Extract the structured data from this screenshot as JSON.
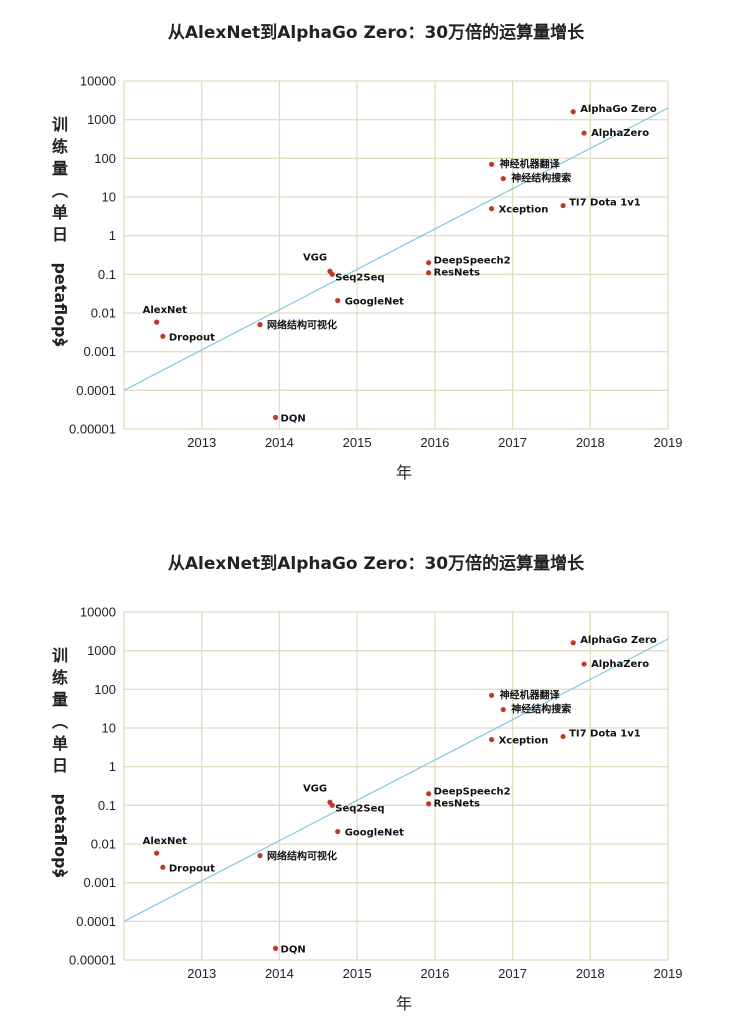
{
  "colors": {
    "grid": "#e2dcc2",
    "point": "#c0392b",
    "trend": "#7ec8e3",
    "axis": "#d8d2b6"
  },
  "chart_data": [
    {
      "type": "scatter",
      "title": "从AlexNet到AlphaGo Zero：30万倍的运算量增长",
      "xlabel": "年",
      "ylabel": "训练量（单日petaflops）",
      "xlim": [
        2012,
        2019
      ],
      "ylim": [
        1e-05,
        10000
      ],
      "yscale": "log",
      "grid": true,
      "xticks": [
        "2013",
        "2014",
        "2015",
        "2016",
        "2017",
        "2018",
        "2019"
      ],
      "yticks": [
        "10000",
        "1000",
        "100",
        "10",
        "1",
        "0.1",
        "0.01",
        "0.001",
        "0.0001",
        "0.00001"
      ],
      "points": [
        {
          "label": "AlexNet",
          "x": 2012.42,
          "y": 0.0058
        },
        {
          "label": "Dropout",
          "x": 2012.5,
          "y": 0.0025
        },
        {
          "label": "网络结构可视化",
          "x": 2013.75,
          "y": 0.005
        },
        {
          "label": "DQN",
          "x": 2013.95,
          "y": 2e-05
        },
        {
          "label": "VGG",
          "x": 2014.65,
          "y": 0.12
        },
        {
          "label": "Seq2Seq",
          "x": 2014.68,
          "y": 0.1
        },
        {
          "label": "GoogleNet",
          "x": 2014.75,
          "y": 0.021
        },
        {
          "label": "DeepSpeech2",
          "x": 2015.92,
          "y": 0.2
        },
        {
          "label": "ResNets",
          "x": 2015.92,
          "y": 0.11
        },
        {
          "label": "神经机器翻译",
          "x": 2016.73,
          "y": 70
        },
        {
          "label": "神经结构搜索",
          "x": 2016.88,
          "y": 30
        },
        {
          "label": "Xception",
          "x": 2016.73,
          "y": 5
        },
        {
          "label": "TI7 Dota 1v1",
          "x": 2017.65,
          "y": 6
        },
        {
          "label": "AlphaGo Zero",
          "x": 2017.78,
          "y": 1600
        },
        {
          "label": "AlphaZero",
          "x": 2017.92,
          "y": 450
        }
      ],
      "trend": {
        "x": [
          2012,
          2019
        ],
        "y": [
          0.0001,
          2000
        ]
      }
    },
    {
      "type": "scatter",
      "title": "从AlexNet到AlphaGo Zero：30万倍的运算量增长",
      "xlabel": "年",
      "ylabel": "训练量（单日petaflops）",
      "xlim": [
        2012,
        2019
      ],
      "ylim": [
        1e-05,
        10000
      ],
      "yscale": "log",
      "grid": true,
      "xticks": [
        "2013",
        "2014",
        "2015",
        "2016",
        "2017",
        "2018",
        "2019"
      ],
      "yticks": [
        "10000",
        "1000",
        "100",
        "10",
        "1",
        "0.1",
        "0.01",
        "0.001",
        "0.0001",
        "0.00001"
      ],
      "points": [
        {
          "label": "AlexNet",
          "x": 2012.42,
          "y": 0.0058
        },
        {
          "label": "Dropout",
          "x": 2012.5,
          "y": 0.0025
        },
        {
          "label": "网络结构可视化",
          "x": 2013.75,
          "y": 0.005
        },
        {
          "label": "DQN",
          "x": 2013.95,
          "y": 2e-05
        },
        {
          "label": "VGG",
          "x": 2014.65,
          "y": 0.12
        },
        {
          "label": "Seq2Seq",
          "x": 2014.68,
          "y": 0.1
        },
        {
          "label": "GoogleNet",
          "x": 2014.75,
          "y": 0.021
        },
        {
          "label": "DeepSpeech2",
          "x": 2015.92,
          "y": 0.2
        },
        {
          "label": "ResNets",
          "x": 2015.92,
          "y": 0.11
        },
        {
          "label": "神经机器翻译",
          "x": 2016.73,
          "y": 70
        },
        {
          "label": "神经结构搜索",
          "x": 2016.88,
          "y": 30
        },
        {
          "label": "Xception",
          "x": 2016.73,
          "y": 5
        },
        {
          "label": "TI7 Dota 1v1",
          "x": 2017.65,
          "y": 6
        },
        {
          "label": "AlphaGo Zero",
          "x": 2017.78,
          "y": 1600
        },
        {
          "label": "AlphaZero",
          "x": 2017.92,
          "y": 450
        }
      ],
      "trend": {
        "x": [
          2012,
          2019
        ],
        "y": [
          0.0001,
          2000
        ]
      }
    }
  ]
}
